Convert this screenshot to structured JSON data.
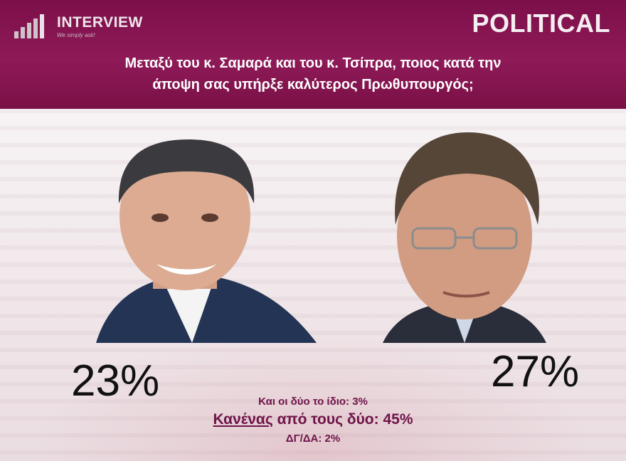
{
  "brand": {
    "name": "INTERVIEW",
    "tagline": "We simply ask!",
    "icon": "bar-logo-icon"
  },
  "header": {
    "label": "POLITICAL",
    "question_line1": "Μεταξύ του κ. Σαμαρά και του κ. Τσίπρα, ποιος κατά την",
    "question_line2": "άποψη σας υπήρξε καλύτερος Πρωθυπουργός;"
  },
  "results": {
    "left_value": "23%",
    "right_value": "27%",
    "same_label": "Και οι δύο το ίδιο: 3%",
    "none_word": "Κανένας",
    "none_rest": " από τους δύο: 45%",
    "dk_label": "ΔΓ/ΔΑ: 2%"
  },
  "colors": {
    "header_bg": "#7c0f4a",
    "accent_text": "#6e1448",
    "value_text": "#111111"
  }
}
